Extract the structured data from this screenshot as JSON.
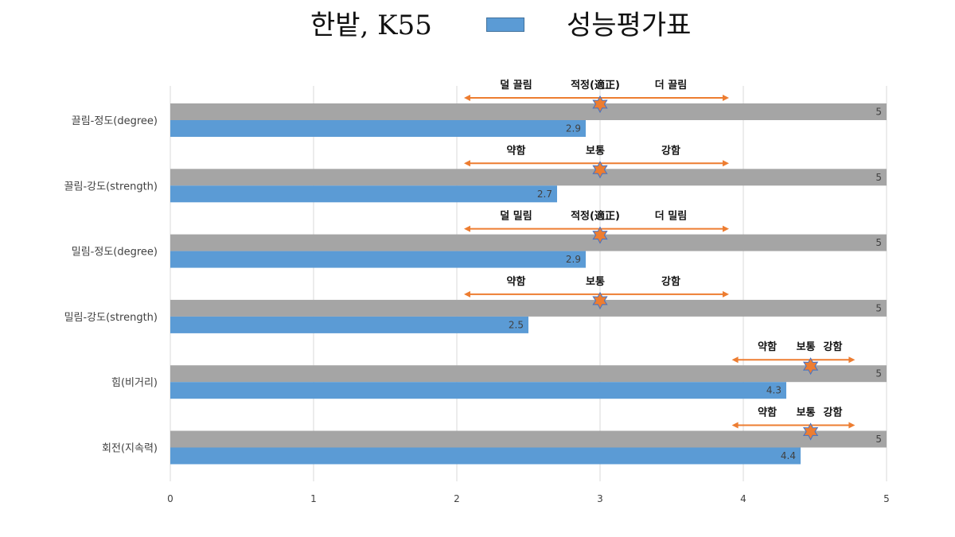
{
  "title_left": "한밭, K55",
  "title_right": "성능평가표",
  "colors": {
    "series": "#5b9bd5",
    "max": "#a5a5a5",
    "arrow": "#ed7d31",
    "star": "#ed7d31",
    "star_stroke": "#4472c4",
    "grid": "#d9d9d9"
  },
  "chart_data": {
    "type": "bar",
    "orientation": "horizontal",
    "categories": [
      "끌림-정도(degree)",
      "끌림-강도(strength)",
      "밀림-정도(degree)",
      "밀림-강도(strength)",
      "힘(비거리)",
      "회전(지속력)"
    ],
    "series": [
      {
        "values": [
          5,
          5,
          5,
          5,
          5,
          5
        ],
        "color": "#a5a5a5"
      },
      {
        "values": [
          2.9,
          2.7,
          2.9,
          2.5,
          4.3,
          4.4
        ],
        "color": "#5b9bd5"
      }
    ],
    "xlim": [
      0,
      5
    ],
    "xticks": [
      "0",
      "1",
      "2",
      "3",
      "4",
      "5"
    ],
    "grid": true,
    "annotations": [
      {
        "low": "덜 끌림",
        "mid": "적정(適正)",
        "high": "더 끌림",
        "marker": 3,
        "range": [
          2.05,
          3.9
        ]
      },
      {
        "low": "약함",
        "mid": "보통",
        "high": "강함",
        "marker": 3,
        "range": [
          2.05,
          3.9
        ]
      },
      {
        "low": "덜 밀림",
        "mid": "적정(適正)",
        "high": "더 밀림",
        "marker": 3,
        "range": [
          2.05,
          3.9
        ]
      },
      {
        "low": "약함",
        "mid": "보통",
        "high": "강함",
        "marker": 3,
        "range": [
          2.05,
          3.9
        ]
      },
      {
        "low": "약함",
        "mid": "보통",
        "high": "강함",
        "marker": 4.47,
        "range": [
          3.92,
          4.78
        ]
      },
      {
        "low": "약함",
        "mid": "보통",
        "high": "강함",
        "marker": 4.47,
        "range": [
          3.92,
          4.78
        ]
      }
    ]
  }
}
